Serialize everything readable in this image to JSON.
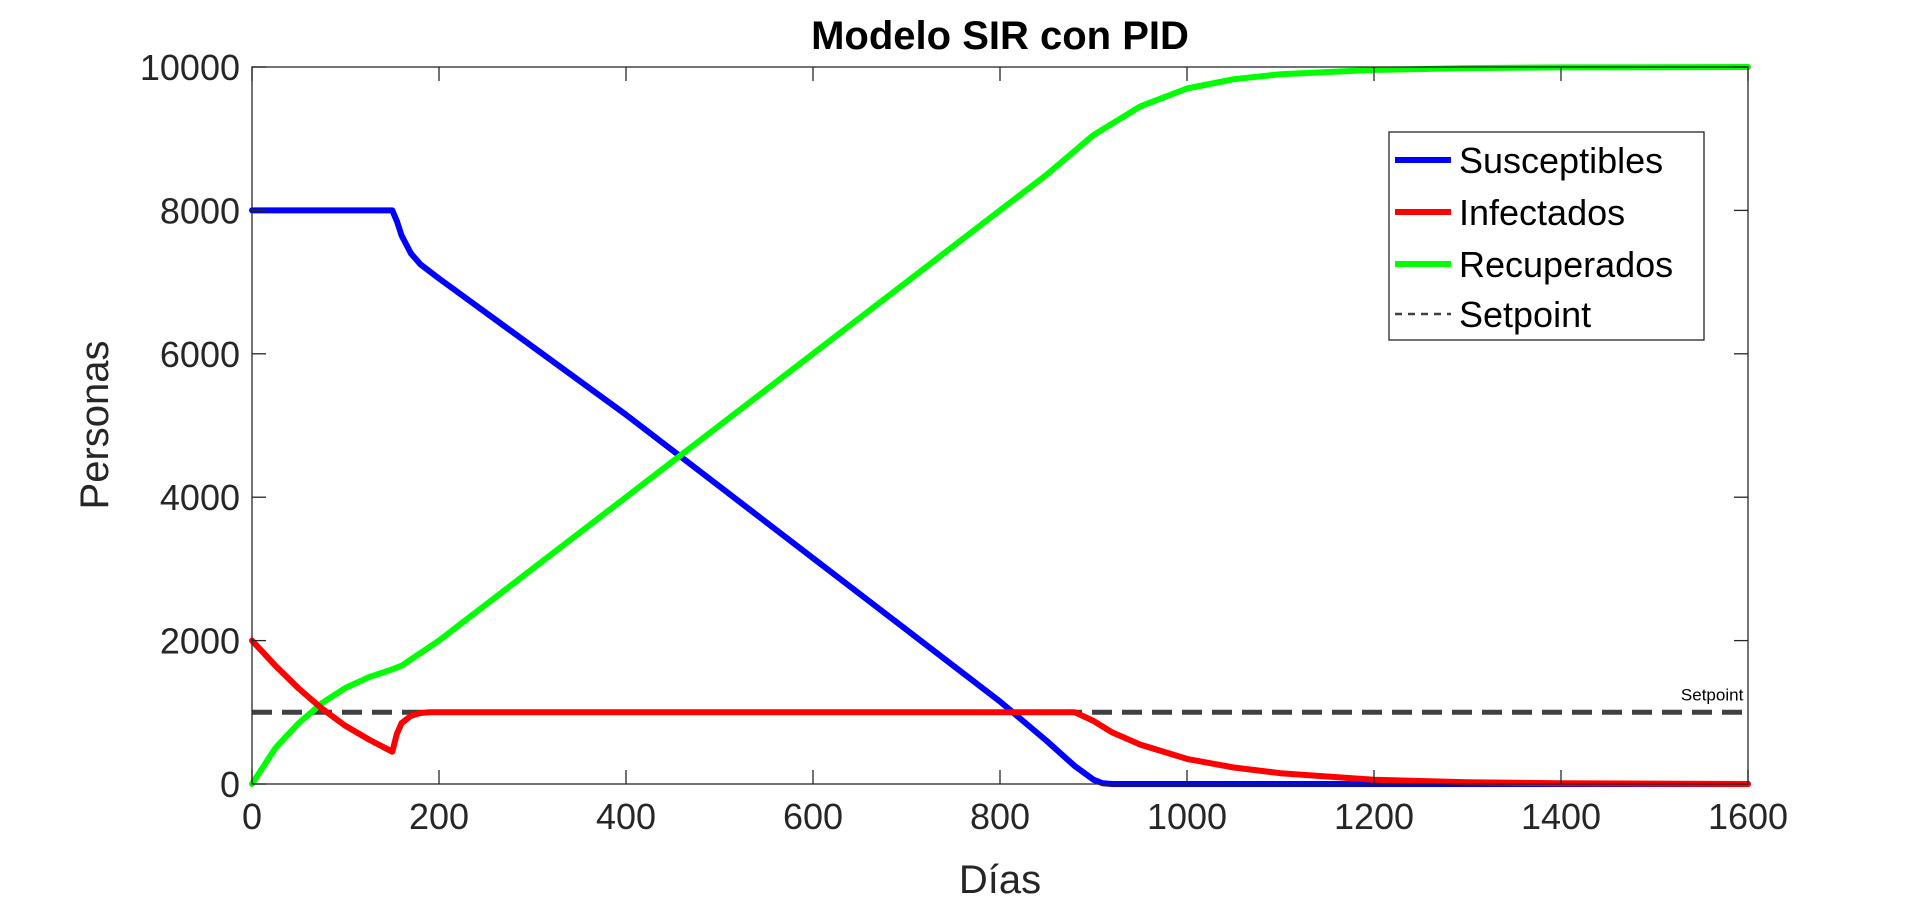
{
  "chart_data": {
    "type": "line",
    "title": "Modelo SIR con PID",
    "xlabel": "Días",
    "ylabel": "Personas",
    "xlim": [
      0,
      1600
    ],
    "ylim": [
      0,
      10000
    ],
    "xticks": [
      0,
      200,
      400,
      600,
      800,
      1000,
      1200,
      1400,
      1600
    ],
    "yticks": [
      0,
      2000,
      4000,
      6000,
      8000,
      10000
    ],
    "grid": false,
    "legend_position": "top-right",
    "series": [
      {
        "name": "Susceptibles",
        "color": "#0000ff",
        "style": "solid",
        "x": [
          0,
          100,
          150,
          155,
          160,
          170,
          180,
          200,
          300,
          400,
          500,
          600,
          700,
          800,
          850,
          880,
          900,
          910,
          920,
          1000,
          1200,
          1400,
          1600
        ],
        "y": [
          8000,
          8000,
          8000,
          7850,
          7650,
          7400,
          7250,
          7050,
          6100,
          5150,
          4150,
          3150,
          2150,
          1150,
          600,
          250,
          60,
          10,
          0,
          0,
          0,
          0,
          0
        ]
      },
      {
        "name": "Infectados",
        "color": "#ff0000",
        "style": "solid",
        "x": [
          0,
          25,
          50,
          75,
          100,
          125,
          150,
          155,
          160,
          170,
          180,
          190,
          200,
          300,
          400,
          500,
          600,
          700,
          800,
          880,
          900,
          920,
          950,
          1000,
          1050,
          1100,
          1200,
          1300,
          1400,
          1600
        ],
        "y": [
          2000,
          1650,
          1330,
          1050,
          810,
          620,
          450,
          700,
          850,
          950,
          990,
          1000,
          1000,
          1000,
          1000,
          1000,
          1000,
          1000,
          1000,
          1000,
          880,
          720,
          550,
          350,
          230,
          150,
          60,
          25,
          10,
          0
        ]
      },
      {
        "name": "Recuperados",
        "color": "#00ff00",
        "style": "solid",
        "x": [
          0,
          25,
          50,
          75,
          100,
          125,
          150,
          160,
          200,
          300,
          400,
          500,
          600,
          700,
          800,
          850,
          900,
          950,
          1000,
          1050,
          1100,
          1200,
          1300,
          1400,
          1600
        ],
        "y": [
          0,
          500,
          850,
          1130,
          1340,
          1490,
          1600,
          1650,
          2000,
          3000,
          4000,
          5000,
          6000,
          7000,
          8000,
          8500,
          9050,
          9450,
          9700,
          9830,
          9900,
          9960,
          9985,
          9995,
          10000
        ]
      },
      {
        "name": "Setpoint",
        "color": "#404040",
        "style": "dashed",
        "x": [
          0,
          1600
        ],
        "y": [
          1000,
          1000
        ]
      }
    ],
    "annotations": [
      {
        "text": "Setpoint",
        "x": 1580,
        "y": 1000
      }
    ]
  }
}
